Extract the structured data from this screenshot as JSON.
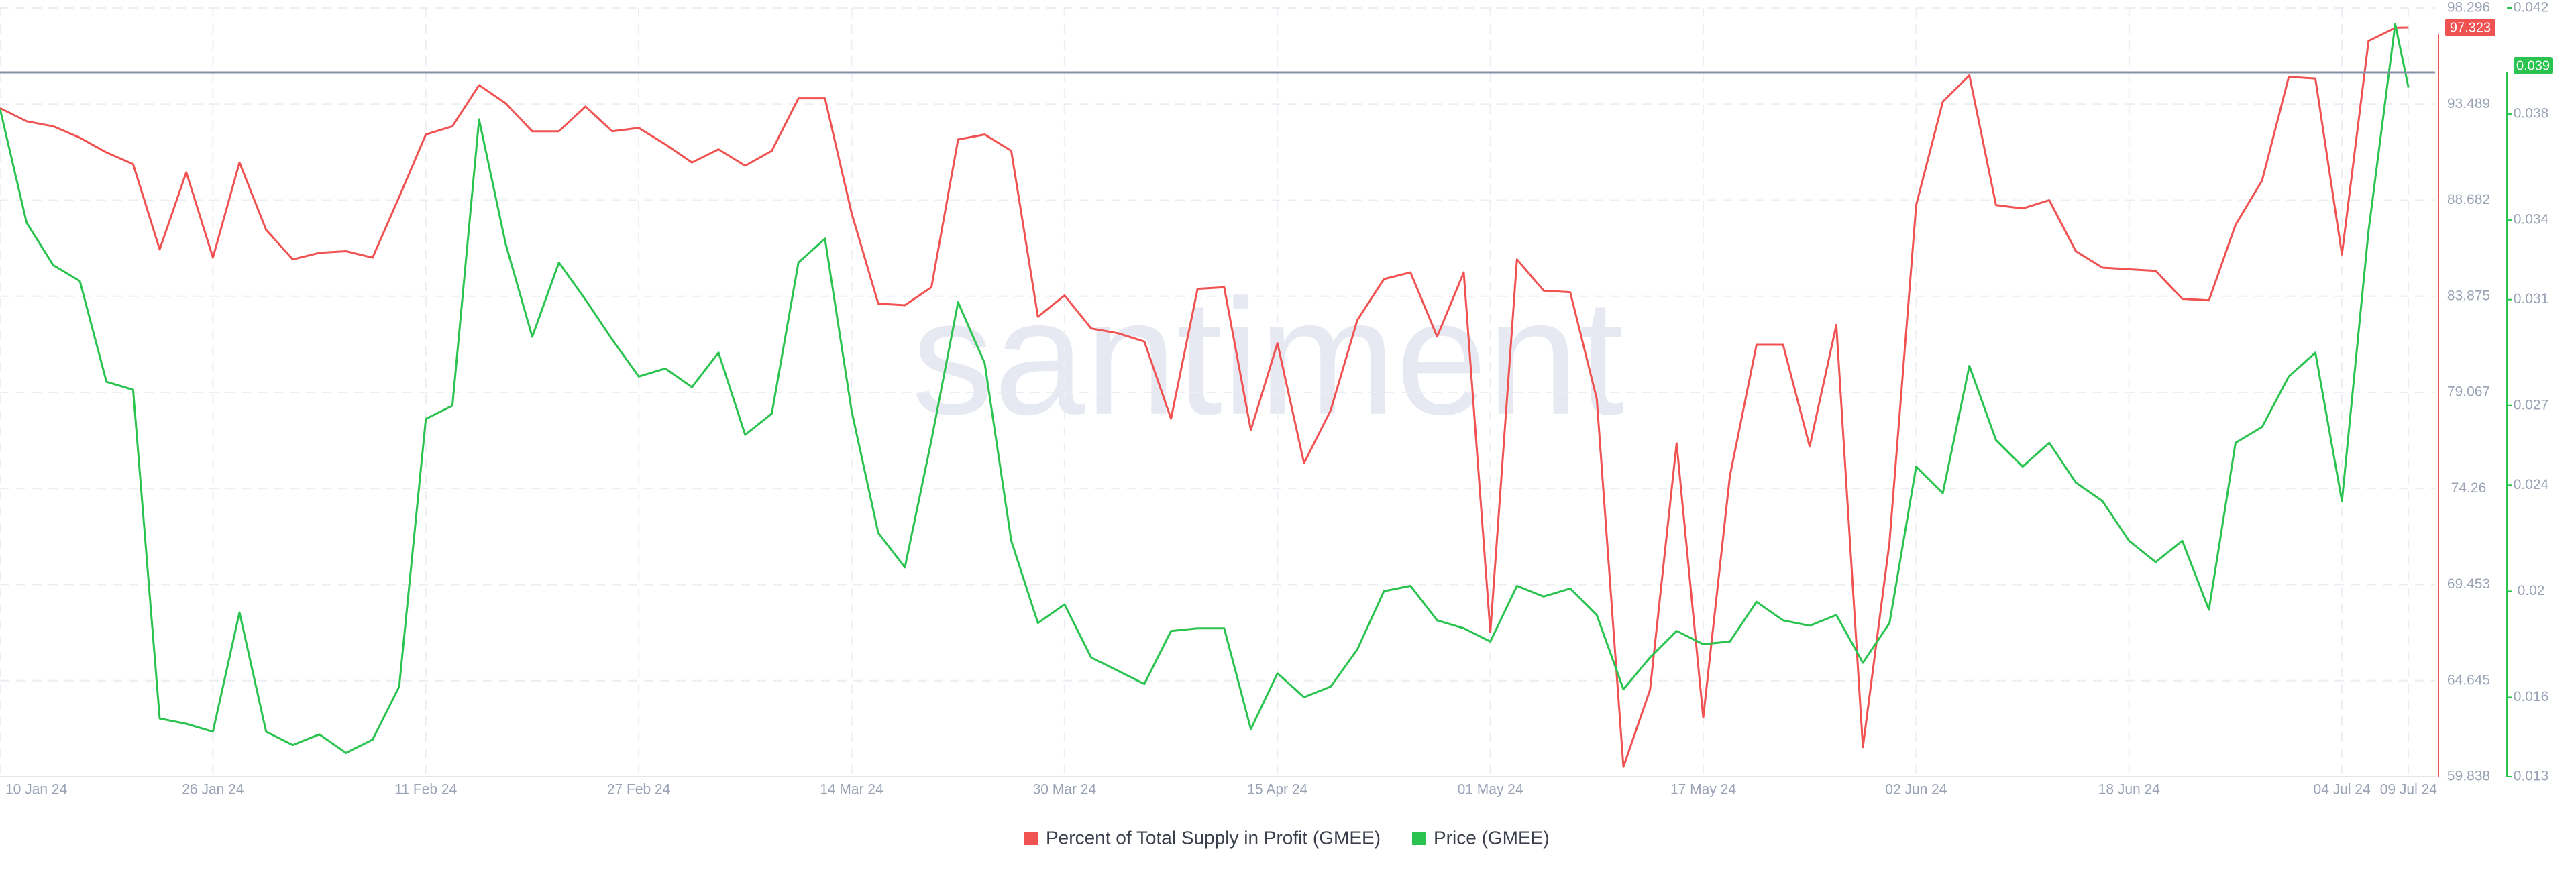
{
  "chart_data": {
    "type": "line",
    "watermark": "santiment",
    "x": [
      "2024-01-10",
      "2024-01-12",
      "2024-01-14",
      "2024-01-16",
      "2024-01-18",
      "2024-01-20",
      "2024-01-22",
      "2024-01-24",
      "2024-01-26",
      "2024-01-28",
      "2024-01-30",
      "2024-02-01",
      "2024-02-03",
      "2024-02-05",
      "2024-02-07",
      "2024-02-09",
      "2024-02-11",
      "2024-02-13",
      "2024-02-15",
      "2024-02-17",
      "2024-02-19",
      "2024-02-21",
      "2024-02-23",
      "2024-02-25",
      "2024-02-27",
      "2024-02-29",
      "2024-03-02",
      "2024-03-04",
      "2024-03-06",
      "2024-03-08",
      "2024-03-10",
      "2024-03-12",
      "2024-03-14",
      "2024-03-16",
      "2024-03-18",
      "2024-03-20",
      "2024-03-22",
      "2024-03-24",
      "2024-03-26",
      "2024-03-28",
      "2024-03-30",
      "2024-04-01",
      "2024-04-03",
      "2024-04-05",
      "2024-04-07",
      "2024-04-09",
      "2024-04-11",
      "2024-04-13",
      "2024-04-15",
      "2024-04-17",
      "2024-04-19",
      "2024-04-21",
      "2024-04-23",
      "2024-04-25",
      "2024-04-27",
      "2024-04-29",
      "2024-05-01",
      "2024-05-03",
      "2024-05-05",
      "2024-05-07",
      "2024-05-09",
      "2024-05-11",
      "2024-05-13",
      "2024-05-15",
      "2024-05-17",
      "2024-05-19",
      "2024-05-21",
      "2024-05-23",
      "2024-05-25",
      "2024-05-27",
      "2024-05-29",
      "2024-05-31",
      "2024-06-02",
      "2024-06-04",
      "2024-06-06",
      "2024-06-08",
      "2024-06-10",
      "2024-06-12",
      "2024-06-14",
      "2024-06-16",
      "2024-06-18",
      "2024-06-20",
      "2024-06-22",
      "2024-06-24",
      "2024-06-26",
      "2024-06-28",
      "2024-06-30",
      "2024-07-02",
      "2024-07-04",
      "2024-07-06",
      "2024-07-08",
      "2024-07-09"
    ],
    "series": [
      {
        "name": "Percent of Total Supply in Profit (GMEE)",
        "color": "#f05252",
        "values": [
          93.29,
          92.63,
          92.38,
          91.81,
          91.07,
          90.49,
          86.22,
          90.08,
          85.81,
          90.57,
          87.2,
          85.72,
          86.05,
          86.13,
          85.81,
          88.85,
          91.97,
          92.38,
          94.44,
          93.53,
          92.13,
          92.13,
          93.37,
          92.13,
          92.3,
          91.48,
          90.57,
          91.23,
          90.41,
          91.15,
          93.78,
          93.78,
          88.03,
          83.51,
          83.43,
          84.33,
          91.72,
          91.97,
          91.15,
          82.85,
          83.92,
          82.27,
          82.03,
          81.61,
          77.75,
          84.25,
          84.33,
          77.18,
          81.53,
          75.53,
          78.17,
          82.68,
          84.74,
          85.07,
          81.86,
          85.07,
          67.07,
          85.72,
          84.16,
          84.08,
          78.74,
          60.33,
          64.19,
          76.52,
          62.8,
          74.88,
          81.45,
          81.45,
          76.36,
          82.44,
          61.32,
          71.59,
          88.44,
          93.61,
          94.93,
          88.44,
          88.27,
          88.68,
          86.13,
          85.31,
          85.23,
          85.15,
          83.75,
          83.67,
          87.45,
          89.67,
          94.85,
          94.77,
          85.97,
          96.66,
          97.31,
          97.323
        ]
      },
      {
        "name": "Price (GMEE)",
        "color": "#2bc34f",
        "axis": "y2",
        "values": [
          0.0382,
          0.0339,
          0.0323,
          0.0317,
          0.0279,
          0.0276,
          0.0152,
          0.015,
          0.0147,
          0.0192,
          0.0147,
          0.0142,
          0.0146,
          0.0139,
          0.0144,
          0.0164,
          0.0265,
          0.027,
          0.0378,
          0.0331,
          0.0296,
          0.0324,
          0.031,
          0.0295,
          0.0281,
          0.0284,
          0.0277,
          0.029,
          0.0259,
          0.0267,
          0.0324,
          0.0333,
          0.0268,
          0.0222,
          0.0209,
          0.0257,
          0.0309,
          0.0286,
          0.0219,
          0.0188,
          0.0195,
          0.0175,
          0.017,
          0.0165,
          0.0185,
          0.0186,
          0.0186,
          0.0148,
          0.0169,
          0.016,
          0.0164,
          0.0178,
          0.02,
          0.0202,
          0.0189,
          0.0186,
          0.0181,
          0.0202,
          0.0198,
          0.0201,
          0.0191,
          0.0163,
          0.0175,
          0.0185,
          0.018,
          0.0181,
          0.0196,
          0.0189,
          0.0187,
          0.0191,
          0.0173,
          0.0188,
          0.0247,
          0.0237,
          0.0285,
          0.0257,
          0.0247,
          0.0256,
          0.0241,
          0.0234,
          0.0219,
          0.0211,
          0.0219,
          0.0193,
          0.0256,
          0.0262,
          0.0281,
          0.029,
          0.0234,
          0.0336,
          0.0414,
          0.039
        ]
      }
    ],
    "xlim": [
      "2024-01-10",
      "2024-07-11"
    ],
    "xticks": [
      {
        "value": "2024-01-10",
        "label": "10 Jan 24"
      },
      {
        "value": "2024-01-26",
        "label": "26 Jan 24"
      },
      {
        "value": "2024-02-11",
        "label": "11 Feb 24"
      },
      {
        "value": "2024-02-27",
        "label": "27 Feb 24"
      },
      {
        "value": "2024-03-14",
        "label": "14 Mar 24"
      },
      {
        "value": "2024-03-30",
        "label": "30 Mar 24"
      },
      {
        "value": "2024-04-15",
        "label": "15 Apr 24"
      },
      {
        "value": "2024-05-01",
        "label": "01 May 24"
      },
      {
        "value": "2024-05-17",
        "label": "17 May 24"
      },
      {
        "value": "2024-06-02",
        "label": "02 Jun 24"
      },
      {
        "value": "2024-06-18",
        "label": "18 Jun 24"
      },
      {
        "value": "2024-07-04",
        "label": "04 Jul 24"
      },
      {
        "value": "2024-07-09",
        "label": "09 Jul 24"
      }
    ],
    "ylim": [
      59.838,
      98.296
    ],
    "yticks": [
      59.838,
      64.645,
      69.453,
      74.26,
      79.067,
      83.875,
      88.682,
      93.489,
      98.296
    ],
    "y2lim": [
      0.013,
      0.042
    ],
    "y2ticks": [
      0.013,
      0.016,
      0.02,
      0.024,
      0.027,
      0.031,
      0.034,
      0.038,
      0.042
    ],
    "grid": true,
    "legend": "bottom"
  }
}
